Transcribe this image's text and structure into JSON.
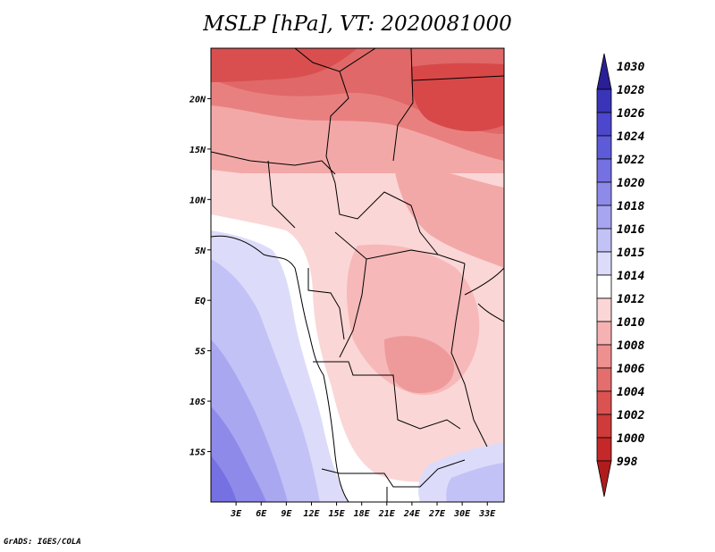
{
  "title": "MSLP [hPa], VT: 2020081000",
  "credit": "GrADS: IGES/COLA",
  "lat_ticks": [
    {
      "label": "20N",
      "lat": 20
    },
    {
      "label": "15N",
      "lat": 15
    },
    {
      "label": "10N",
      "lat": 10
    },
    {
      "label": "5N",
      "lat": 5
    },
    {
      "label": "EQ",
      "lat": 0
    },
    {
      "label": "5S",
      "lat": -5
    },
    {
      "label": "10S",
      "lat": -10
    },
    {
      "label": "15S",
      "lat": -15
    }
  ],
  "lon_ticks": [
    {
      "label": "3E",
      "lon": 3
    },
    {
      "label": "6E",
      "lon": 6
    },
    {
      "label": "9E",
      "lon": 9
    },
    {
      "label": "12E",
      "lon": 12
    },
    {
      "label": "15E",
      "lon": 15
    },
    {
      "label": "18E",
      "lon": 18
    },
    {
      "label": "21E",
      "lon": 21
    },
    {
      "label": "24E",
      "lon": 24
    },
    {
      "label": "27E",
      "lon": 27
    },
    {
      "label": "30E",
      "lon": 30
    },
    {
      "label": "33E",
      "lon": 33
    }
  ],
  "extent": {
    "lon_min": 0,
    "lon_max": 35,
    "lat_min": -20,
    "lat_max": 25
  },
  "colorbar": {
    "labels": [
      "1030",
      "1028",
      "1026",
      "1024",
      "1022",
      "1020",
      "1018",
      "1016",
      "1015",
      "1014",
      "1012",
      "1010",
      "1008",
      "1006",
      "1004",
      "1002",
      "1000",
      "998"
    ],
    "colors": [
      "#2a1f96",
      "#3a34b8",
      "#4c47cc",
      "#5e5bd8",
      "#7571e2",
      "#8d8aea",
      "#a7a5f0",
      "#c3c2f6",
      "#dcdcfa",
      "#ffffff",
      "#fbd6d6",
      "#f6b2b2",
      "#ee9090",
      "#e46e6e",
      "#da5252",
      "#cf3a3a",
      "#c42828",
      "#b01c1c"
    ]
  },
  "colors": {
    "low_pressure": "#d94848",
    "high_pressure": "#6a66d6",
    "neutral": "#ffffff",
    "borders": "#000000"
  }
}
